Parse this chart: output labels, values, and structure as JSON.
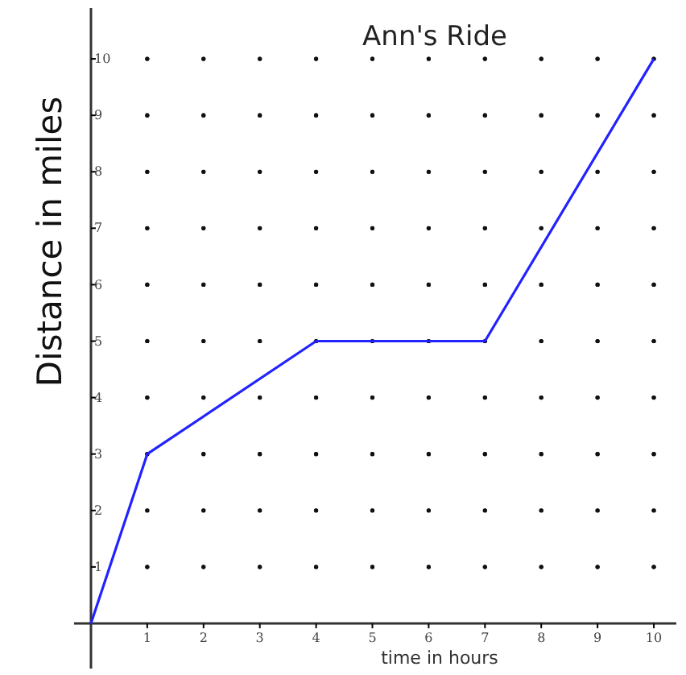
{
  "chart_data": {
    "type": "line",
    "title": "Ann's Ride",
    "xlabel": "time in hours",
    "ylabel": "Distance in miles",
    "x": [
      0,
      1,
      4,
      7,
      10
    ],
    "series": [
      {
        "color": "#2222ff",
        "values": [
          0,
          3,
          5,
          5,
          10
        ]
      }
    ],
    "xlim": [
      -0.3,
      10.4
    ],
    "ylim": [
      -0.8,
      10.9
    ],
    "xticks": [
      1,
      2,
      3,
      4,
      5,
      6,
      7,
      8,
      9,
      10
    ],
    "yticks": [
      1,
      2,
      3,
      4,
      5,
      6,
      7,
      8,
      9,
      10
    ],
    "grid": true,
    "marker": "none",
    "line_style": "solid"
  }
}
